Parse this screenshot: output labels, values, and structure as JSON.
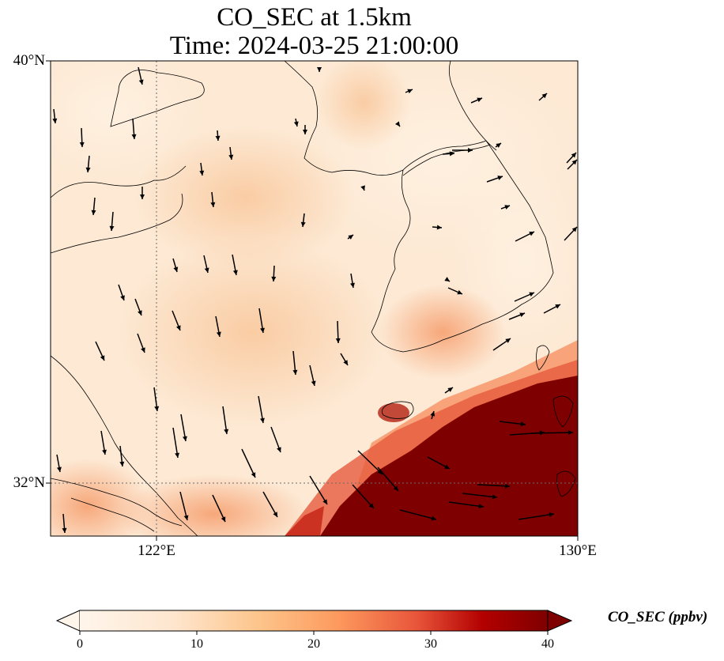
{
  "map": {
    "title_line1": "CO_SEC at 1.5km",
    "title_line2": "Time: 2024-03-25 21:00:00",
    "lat_labels": [
      "40°N",
      "32°N"
    ],
    "lon_labels": [
      "122°E",
      "130°E"
    ],
    "gridlines": "dotted",
    "wind_vectors": "shown"
  },
  "colorbar": {
    "label": "CO_SEC (ppbv)",
    "ticks": [
      "0",
      "10",
      "20",
      "30",
      "40"
    ],
    "colormap": [
      "#fff5eb",
      "#fdd9b0",
      "#fdae6b",
      "#f16913",
      "#b30000",
      "#7f0000"
    ],
    "range": [
      0,
      40
    ],
    "extend": "both"
  }
}
